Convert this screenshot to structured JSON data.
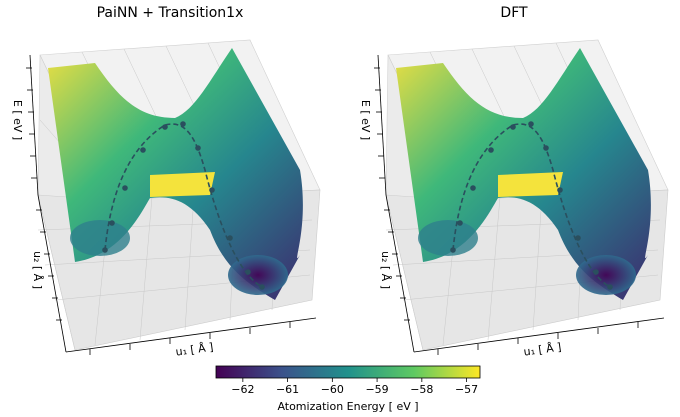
{
  "chart_data": [
    {
      "type": "surface",
      "title": "PaiNN + Transition1x",
      "xlabel": "u₁ [ Å ]",
      "ylabel": "u₂ [ Å ]",
      "zlabel": "E [ eV ]",
      "path": "dashed minimum-energy path with markers over the surface",
      "grid": true
    },
    {
      "type": "surface",
      "title": "DFT",
      "xlabel": "u₁ [ Å ]",
      "ylabel": "u₂ [ Å ]",
      "zlabel": "E [ eV ]",
      "path": "dashed minimum-energy path with markers over the surface",
      "grid": true
    }
  ],
  "colorbar": {
    "label": "Atomization Energy [ eV ]",
    "ticks": [
      "−62",
      "−61",
      "−60",
      "−59",
      "−58",
      "−57"
    ],
    "tick_values": [
      -62,
      -61,
      -60,
      -59,
      -58,
      -57
    ],
    "range": [
      -62.6,
      -56.7
    ],
    "colormap": "viridis",
    "colors": [
      "#440154",
      "#3b528b",
      "#21918c",
      "#5ec962",
      "#fde725"
    ]
  }
}
